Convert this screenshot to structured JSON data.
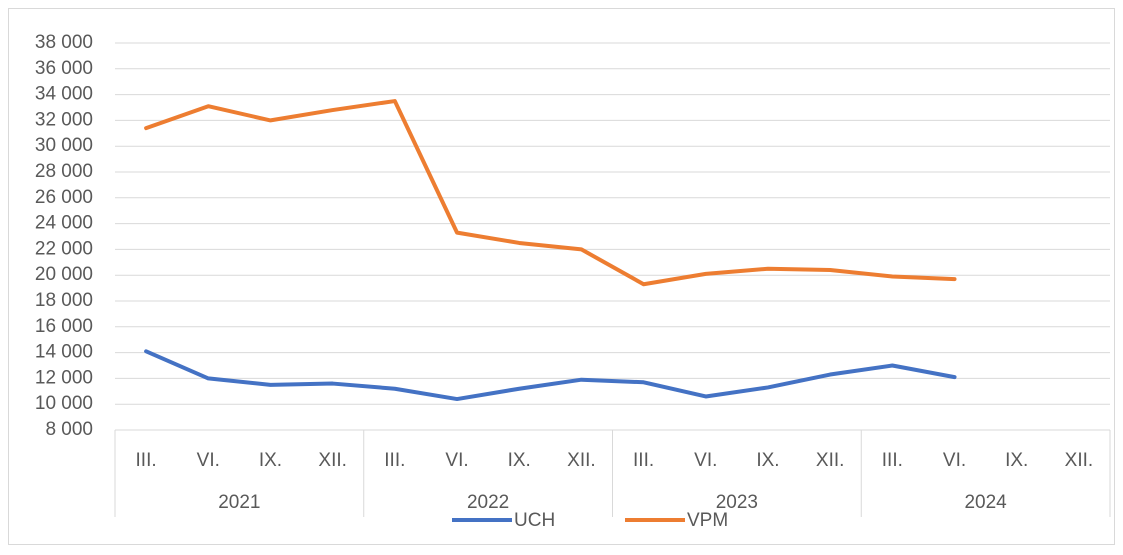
{
  "chart_data": {
    "type": "line",
    "categories": [
      "III.",
      "VI.",
      "IX.",
      "XII.",
      "III.",
      "VI.",
      "IX.",
      "XII.",
      "III.",
      "VI.",
      "IX.",
      "XII.",
      "III.",
      "VI.",
      "IX.",
      "XII."
    ],
    "groups": [
      "2021",
      "2022",
      "2023",
      "2024"
    ],
    "series": [
      {
        "name": "UCH",
        "color": "#4472c4",
        "values": [
          14100,
          12000,
          11500,
          11600,
          11200,
          10400,
          11200,
          11900,
          11700,
          10600,
          11300,
          12300,
          13000,
          12100,
          null,
          null
        ]
      },
      {
        "name": "VPM",
        "color": "#ed7d31",
        "values": [
          31400,
          33100,
          32000,
          32800,
          33500,
          23300,
          22500,
          22000,
          19300,
          20100,
          20500,
          20400,
          19900,
          19700,
          null,
          null
        ]
      }
    ],
    "ylim": [
      8000,
      38000
    ],
    "yticks": [
      {
        "value": 8000,
        "label": "8 000"
      },
      {
        "value": 10000,
        "label": "10 000"
      },
      {
        "value": 12000,
        "label": "12 000"
      },
      {
        "value": 14000,
        "label": "14 000"
      },
      {
        "value": 16000,
        "label": "16 000"
      },
      {
        "value": 18000,
        "label": "18 000"
      },
      {
        "value": 20000,
        "label": "20 000"
      },
      {
        "value": 22000,
        "label": "22 000"
      },
      {
        "value": 24000,
        "label": "24 000"
      },
      {
        "value": 26000,
        "label": "26 000"
      },
      {
        "value": 28000,
        "label": "28 000"
      },
      {
        "value": 30000,
        "label": "30 000"
      },
      {
        "value": 32000,
        "label": "32 000"
      },
      {
        "value": 34000,
        "label": "34 000"
      },
      {
        "value": 36000,
        "label": "36 000"
      },
      {
        "value": 38000,
        "label": "38 000"
      }
    ],
    "grid": true,
    "legend": "bottom"
  }
}
